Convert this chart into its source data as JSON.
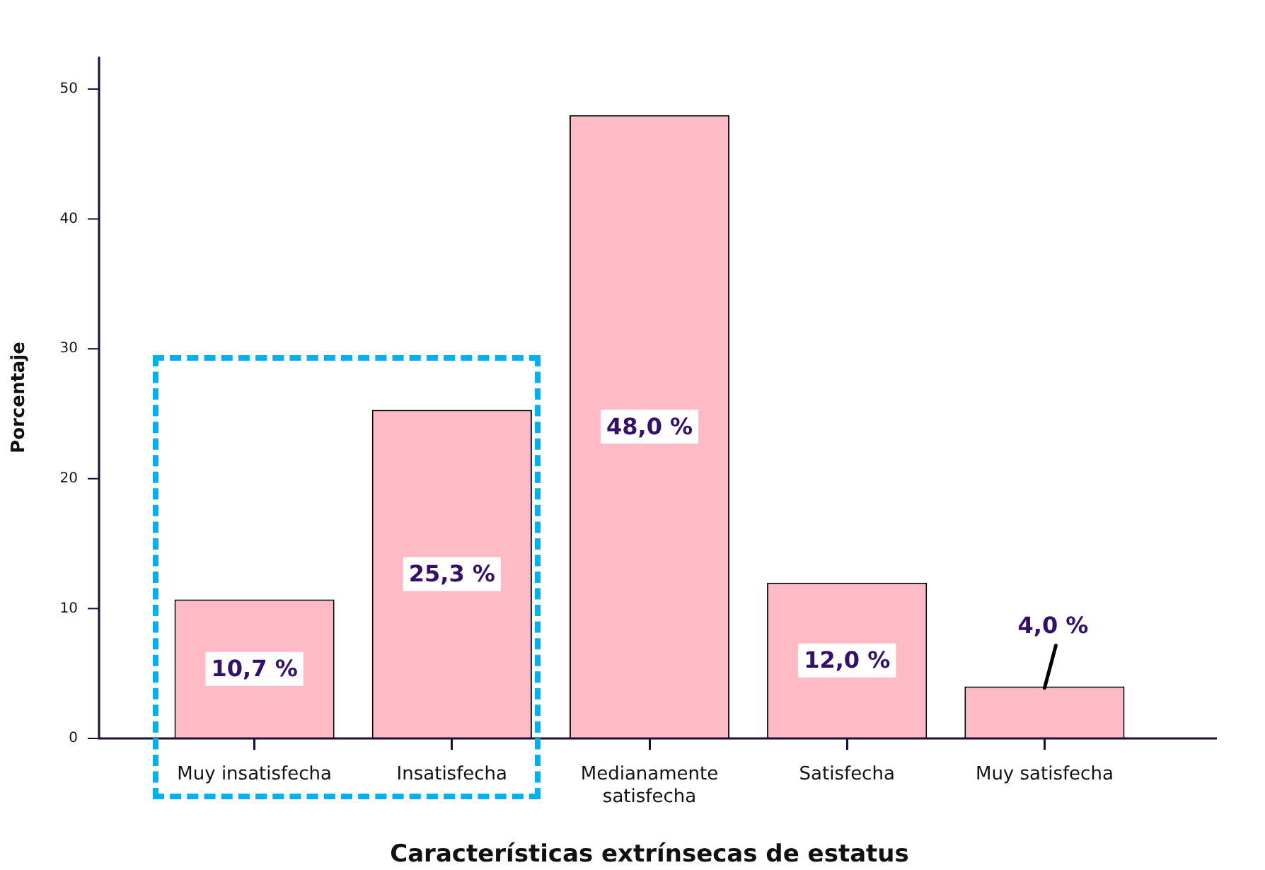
{
  "chart_data": {
    "type": "bar",
    "xlabel": "Características extrínsecas de estatus",
    "ylabel": "Porcentaje",
    "categories": [
      "Muy insatisfecha",
      "Insatisfecha",
      "Medianamente satisfecha",
      "Satisfecha",
      "Muy satisfecha"
    ],
    "values": [
      10.7,
      25.3,
      48.0,
      12.0,
      4.0
    ],
    "value_labels": [
      "10,7 %",
      "25,3 %",
      "48,0 %",
      "12,0 %",
      "4,0 %"
    ],
    "color": "#ffbbc5",
    "ylim": [
      0,
      52.5
    ],
    "yticks": [
      0,
      10,
      20,
      30,
      40,
      50
    ],
    "grid": false,
    "legend": false
  }
}
